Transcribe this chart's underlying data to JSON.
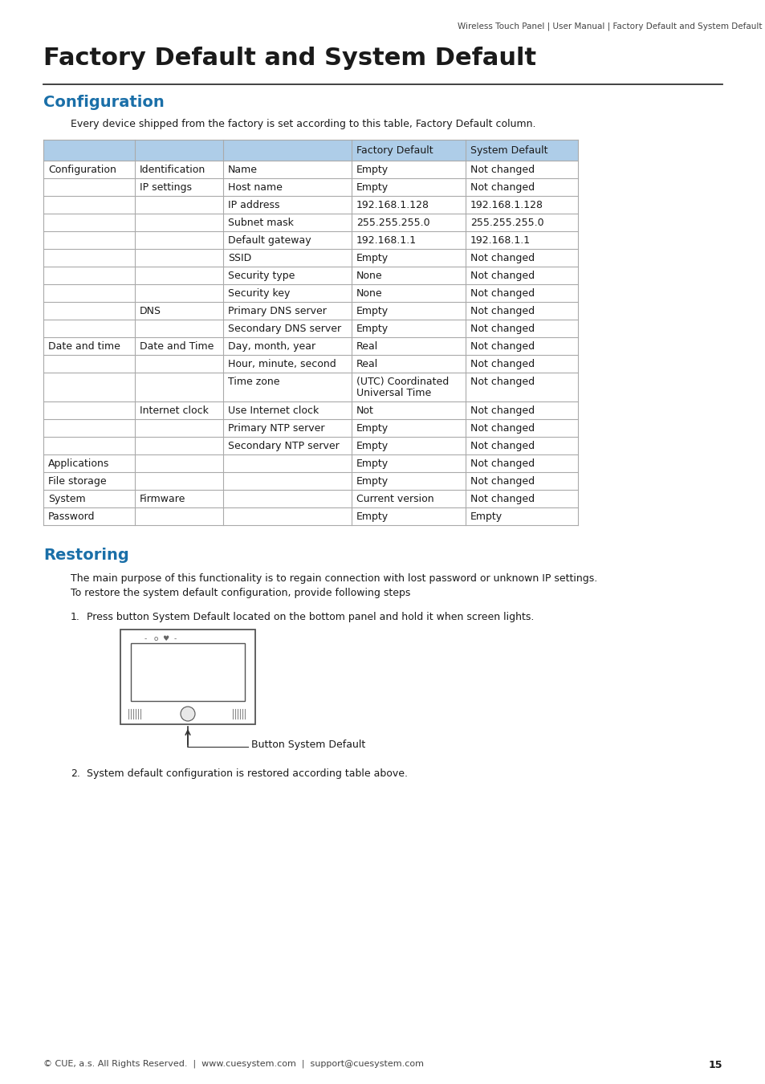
{
  "header_text": "Wireless Touch Panel | User Manual | Factory Default and System Default",
  "title": "Factory Default and System Default",
  "section1_title": "Configuration",
  "section1_intro": "Every device shipped from the factory is set according to this table, Factory Default column.",
  "table_header_bg": "#aecde8",
  "table_rows": [
    [
      "Configuration",
      "Identification",
      "Name",
      "Empty",
      "Not changed"
    ],
    [
      "",
      "IP settings",
      "Host name",
      "Empty",
      "Not changed"
    ],
    [
      "",
      "",
      "IP address",
      "192.168.1.128",
      "192.168.1.128"
    ],
    [
      "",
      "",
      "Subnet mask",
      "255.255.255.0",
      "255.255.255.0"
    ],
    [
      "",
      "",
      "Default gateway",
      "192.168.1.1",
      "192.168.1.1"
    ],
    [
      "",
      "",
      "SSID",
      "Empty",
      "Not changed"
    ],
    [
      "",
      "",
      "Security type",
      "None",
      "Not changed"
    ],
    [
      "",
      "",
      "Security key",
      "None",
      "Not changed"
    ],
    [
      "",
      "DNS",
      "Primary DNS server",
      "Empty",
      "Not changed"
    ],
    [
      "",
      "",
      "Secondary DNS server",
      "Empty",
      "Not changed"
    ],
    [
      "Date and time",
      "Date and Time",
      "Day, month, year",
      "Real",
      "Not changed"
    ],
    [
      "",
      "",
      "Hour, minute, second",
      "Real",
      "Not changed"
    ],
    [
      "",
      "",
      "Time zone",
      "(UTC) Coordinated\nUniversal Time",
      "Not changed"
    ],
    [
      "",
      "Internet clock",
      "Use Internet clock",
      "Not",
      "Not changed"
    ],
    [
      "",
      "",
      "Primary NTP server",
      "Empty",
      "Not changed"
    ],
    [
      "",
      "",
      "Secondary NTP server",
      "Empty",
      "Not changed"
    ],
    [
      "Applications",
      "",
      "",
      "Empty",
      "Not changed"
    ],
    [
      "File storage",
      "",
      "",
      "Empty",
      "Not changed"
    ],
    [
      "System",
      "Firmware",
      "",
      "Current version",
      "Not changed"
    ],
    [
      "Password",
      "",
      "",
      "Empty",
      "Empty"
    ]
  ],
  "section2_title": "Restoring",
  "restoring_para1": "The main purpose of this functionality is to regain connection with lost password or unknown IP settings.",
  "restoring_para2": "To restore the system default configuration, provide following steps",
  "step1": "Press button System Default located on the bottom panel and hold it when screen lights.",
  "step2": "System default configuration is restored according table above.",
  "button_label": "Button System Default",
  "footer": "© CUE, a.s. All Rights Reserved.  |  www.cuesystem.com  |  support@cuesystem.com",
  "page_number": "15",
  "blue_color": "#1a6fa8",
  "text_color": "#1a1a1a",
  "table_line_color": "#aaaaaa",
  "bg_color": "#ffffff"
}
